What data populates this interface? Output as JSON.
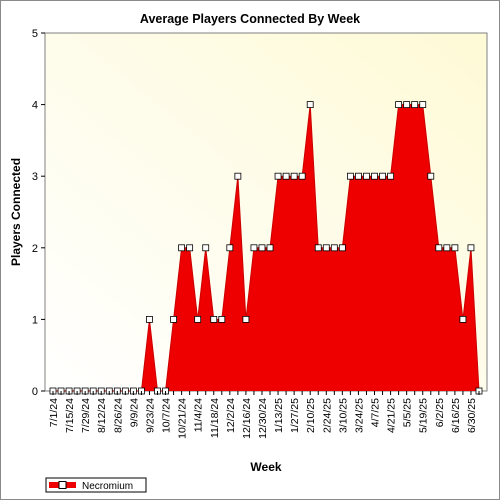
{
  "chart_data": {
    "type": "area",
    "title": "Average Players Connected By Week",
    "xlabel": "Week",
    "ylabel": "Players Connected",
    "ylim": [
      0,
      5
    ],
    "yticks": [
      0,
      1,
      2,
      3,
      4,
      5
    ],
    "grid": false,
    "legend": "bottom-left",
    "x_tick_labels": [
      "7/1/24",
      "7/15/24",
      "7/29/24",
      "8/12/24",
      "8/26/24",
      "9/9/24",
      "9/23/24",
      "10/7/24",
      "10/21/24",
      "11/4/24",
      "11/18/24",
      "12/2/24",
      "12/16/24",
      "12/30/24",
      "1/13/25",
      "1/27/25",
      "2/10/25",
      "2/24/25",
      "3/10/25",
      "3/24/25",
      "4/7/25",
      "4/21/25",
      "5/5/25",
      "5/19/25",
      "6/2/25",
      "6/16/25",
      "6/30/25"
    ],
    "x": [
      "7/1/24",
      "7/8/24",
      "7/15/24",
      "7/22/24",
      "7/29/24",
      "8/5/24",
      "8/12/24",
      "8/19/24",
      "8/26/24",
      "9/2/24",
      "9/9/24",
      "9/16/24",
      "9/23/24",
      "9/30/24",
      "10/7/24",
      "10/14/24",
      "10/21/24",
      "10/28/24",
      "11/4/24",
      "11/11/24",
      "11/18/24",
      "11/25/24",
      "12/2/24",
      "12/9/24",
      "12/16/24",
      "12/23/24",
      "12/30/24",
      "1/6/25",
      "1/13/25",
      "1/20/25",
      "1/27/25",
      "2/3/25",
      "2/10/25",
      "2/17/25",
      "2/24/25",
      "3/3/25",
      "3/10/25",
      "3/17/25",
      "3/24/25",
      "3/31/25",
      "4/7/25",
      "4/14/25",
      "4/21/25",
      "4/28/25",
      "5/5/25",
      "5/12/25",
      "5/19/25",
      "5/26/25",
      "6/2/25",
      "6/9/25",
      "6/16/25",
      "6/23/25",
      "6/30/25",
      "7/7/25"
    ],
    "series": [
      {
        "name": "Necromium",
        "color": "#ee0000",
        "values": [
          0,
          0,
          0,
          0,
          0,
          0,
          0,
          0,
          0,
          0,
          0,
          0,
          1,
          0,
          0,
          1,
          2,
          2,
          1,
          2,
          1,
          1,
          2,
          3,
          1,
          2,
          2,
          2,
          3,
          3,
          3,
          3,
          4,
          2,
          2,
          2,
          2,
          3,
          3,
          3,
          3,
          3,
          3,
          4,
          4,
          4,
          4,
          3,
          2,
          2,
          2,
          1,
          2,
          0
        ]
      }
    ]
  }
}
